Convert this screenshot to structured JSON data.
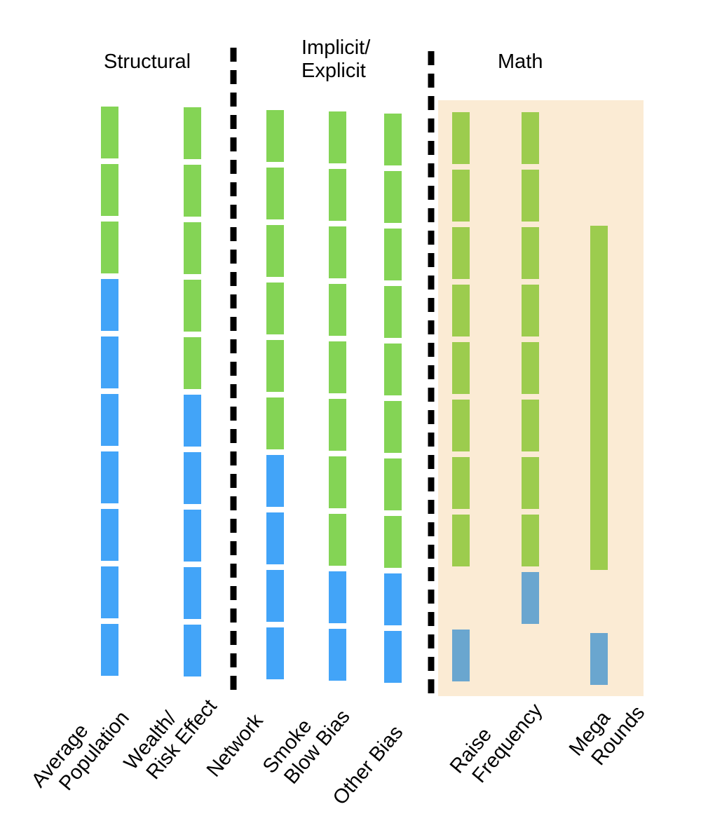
{
  "sections": [
    {
      "title_lines": [
        "Structural"
      ]
    },
    {
      "title_lines": [
        "Implicit/",
        "Explicit"
      ]
    },
    {
      "title_lines": [
        "Math"
      ]
    }
  ],
  "colors": {
    "green": "#84d455",
    "blue": "#42a4f8",
    "math_green": "#9ccc4e",
    "math_blue": "#6aa6cf",
    "math_panel": "#fbebd4",
    "divider": "#000000"
  },
  "columns": [
    {
      "label_lines": [
        "Average",
        "Population"
      ],
      "blocks": [
        "green",
        "green",
        "green",
        "blue",
        "blue",
        "blue",
        "blue",
        "blue",
        "blue",
        "blue"
      ]
    },
    {
      "label_lines": [
        "Wealth/",
        "Risk Effect"
      ],
      "blocks": [
        "green",
        "green",
        "green",
        "green",
        "green",
        "blue",
        "blue",
        "blue",
        "blue",
        "blue"
      ]
    },
    {
      "label_lines": [
        "Network"
      ],
      "blocks": [
        "green",
        "green",
        "green",
        "green",
        "green",
        "green",
        "blue",
        "blue",
        "blue",
        "blue"
      ]
    },
    {
      "label_lines": [
        "Smoke",
        "Blow Bias"
      ],
      "blocks": [
        "green",
        "green",
        "green",
        "green",
        "green",
        "green",
        "green",
        "green",
        "blue",
        "blue"
      ]
    },
    {
      "label_lines": [
        "Other Bias"
      ],
      "blocks": [
        "green",
        "green",
        "green",
        "green",
        "green",
        "green",
        "green",
        "green",
        "blue",
        "blue"
      ]
    },
    {
      "label_lines": [
        "Raise",
        "Frequency"
      ],
      "blocks": [
        "green",
        "green",
        "green",
        "green",
        "green",
        "green",
        "green",
        "green",
        "empty",
        "blue"
      ]
    },
    {
      "label_lines": [
        "Raise",
        "Frequency"
      ],
      "blocks": [
        "green",
        "green",
        "green",
        "green",
        "green",
        "green",
        "green",
        "green",
        "blue",
        "empty"
      ]
    },
    {
      "label_lines": [
        "Mega",
        "Rounds"
      ],
      "blocks": [
        "empty",
        "empty",
        "green-tall",
        "blue"
      ]
    }
  ]
}
